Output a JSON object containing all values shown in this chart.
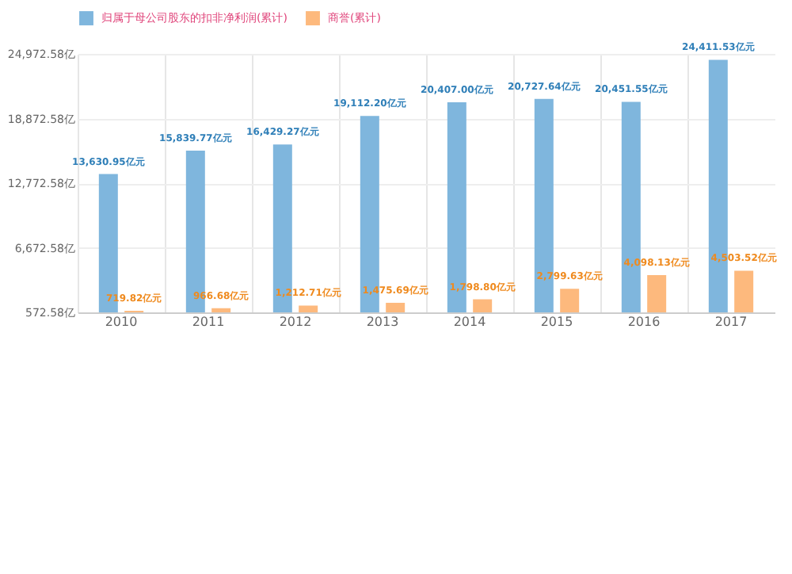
{
  "chart_data": {
    "type": "bar",
    "categories": [
      "2010",
      "2011",
      "2012",
      "2013",
      "2014",
      "2015",
      "2016",
      "2017"
    ],
    "series": [
      {
        "name": "归属于母公司股东的扣非净利润(累计)",
        "color": "#7fb6dd",
        "values": [
          13630.95,
          15839.77,
          16429.27,
          19112.2,
          20407.0,
          20727.64,
          20451.55,
          24411.53
        ],
        "value_labels": [
          "13,630.95亿元",
          "15,839.77亿元",
          "16,429.27亿元",
          "19,112.20亿元",
          "20,407.00亿元",
          "20,727.64亿元",
          "20,451.55亿元",
          "24,411.53亿元"
        ]
      },
      {
        "name": "商誉(累计)",
        "color": "#fdb97d",
        "values": [
          719.82,
          966.68,
          1212.71,
          1475.69,
          1798.8,
          2799.63,
          4098.13,
          4503.52
        ],
        "value_labels": [
          "719.82亿元",
          "966.68亿元",
          "1,212.71亿元",
          "1,475.69亿元",
          "1,798.80亿元",
          "2,799.63亿元",
          "4,098.13亿元",
          "4,503.52亿元"
        ]
      }
    ],
    "ylim": [
      572.58,
      24972.58
    ],
    "yticks": [
      {
        "value": 572.58,
        "label": "572.58亿"
      },
      {
        "value": 6672.58,
        "label": "6,672.58亿"
      },
      {
        "value": 12772.58,
        "label": "12,772.58亿"
      },
      {
        "value": 18872.58,
        "label": "18,872.58亿"
      },
      {
        "value": 24972.58,
        "label": "24,972.58亿"
      }
    ],
    "grid": true,
    "legend": "top"
  }
}
